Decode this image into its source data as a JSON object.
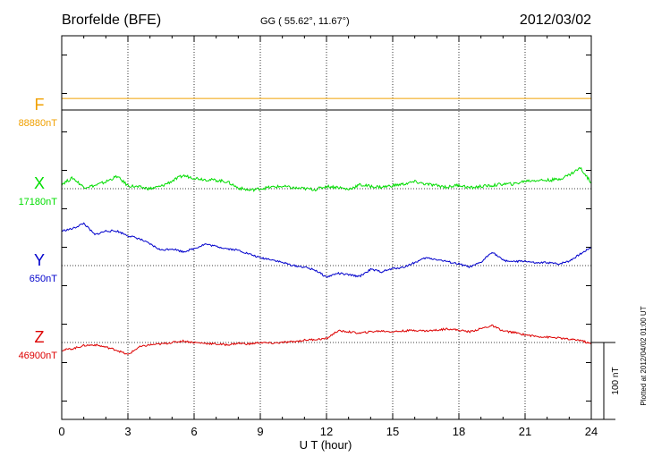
{
  "header": {
    "station": "Brorfelde (BFE)",
    "coords": "GG ( 55.62°,  11.67°)",
    "date": "2012/03/02"
  },
  "plotted_note": "Plotted at 2012/04/02 01:00 UT",
  "chart_data": {
    "type": "line",
    "xlabel": "U T (hour)",
    "xlim": [
      0,
      24
    ],
    "x_ticks": [
      0,
      3,
      6,
      9,
      12,
      15,
      18,
      21,
      24
    ],
    "x_tick_labels": [
      "0",
      "3",
      "6",
      "9",
      "12",
      "15",
      "18",
      "21",
      "24"
    ],
    "grid": true,
    "scale_bar": {
      "label": "100 nT",
      "value_nT": 100
    },
    "hours": [
      0,
      0.5,
      1,
      1.5,
      2,
      2.5,
      3,
      3.5,
      4,
      4.5,
      5,
      5.5,
      6,
      6.5,
      7,
      7.5,
      8,
      8.5,
      9,
      9.5,
      10,
      10.5,
      11,
      11.5,
      12,
      12.5,
      13,
      13.5,
      14,
      14.5,
      15,
      15.5,
      16,
      16.5,
      17,
      17.5,
      18,
      18.5,
      19,
      19.5,
      20,
      20.5,
      21,
      21.5,
      22,
      22.5,
      23,
      23.5,
      24
    ],
    "series": [
      {
        "name": "F",
        "baseline_label": "88880nT",
        "color": "#f0a000",
        "values": [
          15,
          15,
          15,
          15,
          15,
          15,
          15,
          15,
          15,
          15,
          15,
          15,
          15,
          15,
          15,
          15,
          15,
          15,
          15,
          15,
          15,
          15,
          15,
          15,
          15,
          15,
          15,
          15,
          15,
          15,
          15,
          15,
          15,
          15,
          15,
          15,
          15,
          15,
          15,
          15,
          15,
          15,
          15,
          15,
          15,
          15,
          15,
          15,
          15
        ]
      },
      {
        "name": "X",
        "baseline_label": "17180nT",
        "color": "#00dd00",
        "values": [
          6,
          14,
          2,
          4,
          9,
          16,
          4,
          2,
          0,
          3,
          10,
          17,
          14,
          12,
          11,
          9,
          1,
          -2,
          0,
          2,
          3,
          1,
          0,
          -1,
          3,
          2,
          -1,
          5,
          3,
          2,
          4,
          6,
          9,
          6,
          4,
          2,
          5,
          1,
          3,
          4,
          6,
          6,
          10,
          11,
          11,
          12,
          18,
          27,
          8
        ]
      },
      {
        "name": "Y",
        "baseline_label": "650nT",
        "color": "#0000cc",
        "values": [
          45,
          48,
          55,
          40,
          45,
          45,
          39,
          35,
          28,
          20,
          22,
          18,
          22,
          28,
          25,
          22,
          20,
          15,
          10,
          8,
          4,
          0,
          -2,
          -6,
          -15,
          -10,
          -12,
          -14,
          -5,
          -8,
          -4,
          -2,
          4,
          10,
          8,
          5,
          2,
          -2,
          4,
          18,
          7,
          5,
          6,
          3,
          4,
          2,
          6,
          15,
          24
        ]
      },
      {
        "name": "Z",
        "baseline_label": "46900nT",
        "color": "#dd0000",
        "values": [
          -10,
          -8,
          -4,
          -3,
          -6,
          -10,
          -16,
          -6,
          -3,
          -2,
          0,
          2,
          0,
          -1,
          -2,
          -3,
          -1,
          -2,
          0,
          -1,
          0,
          1,
          3,
          4,
          5,
          15,
          14,
          12,
          14,
          15,
          14,
          15,
          16,
          15,
          16,
          18,
          16,
          14,
          18,
          22,
          15,
          13,
          10,
          8,
          7,
          6,
          4,
          3,
          -2
        ]
      }
    ]
  }
}
